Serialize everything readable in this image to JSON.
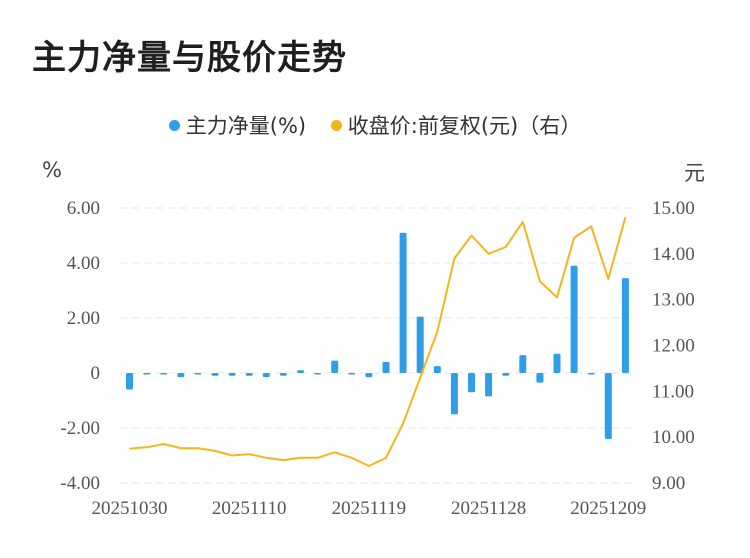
{
  "title": "主力净量与股价走势",
  "legend": [
    {
      "label": "主力净量(%)",
      "color": "#2e9ee8"
    },
    {
      "label": "收盘价:前复权(元)（右）",
      "color": "#f5b51c"
    }
  ],
  "units": {
    "left": "%",
    "right": "元"
  },
  "colors": {
    "bar": "#2e9ee8",
    "line": "#f5b51c",
    "grid": "#e6e6e6",
    "text": "#555555"
  },
  "chart_data": {
    "type": "bar+line",
    "categories": [
      "20251030",
      "20251031",
      "20251103",
      "20251104",
      "20251105",
      "20251106",
      "20251107",
      "20251110",
      "20251111",
      "20251112",
      "20251113",
      "20251114",
      "20251117",
      "20251118",
      "20251119",
      "20251120",
      "20251121",
      "20251124",
      "20251125",
      "20251126",
      "20251127",
      "20251128",
      "20251201",
      "20251202",
      "20251203",
      "20251204",
      "20251205",
      "20251208",
      "20251209",
      "20251210"
    ],
    "x_tick_labels": [
      "20251030",
      "20251110",
      "20251119",
      "20251128",
      "20251209"
    ],
    "x_tick_indices": [
      0,
      7,
      14,
      21,
      28
    ],
    "series": [
      {
        "name": "主力净量(%)",
        "type": "bar",
        "axis": "left",
        "values": [
          -0.6,
          0.0,
          0.0,
          -0.15,
          -0.05,
          -0.1,
          -0.1,
          -0.1,
          -0.15,
          -0.1,
          0.1,
          0.0,
          0.45,
          -0.05,
          -0.15,
          0.4,
          5.1,
          2.05,
          0.25,
          -1.5,
          -0.7,
          -0.85,
          -0.1,
          0.65,
          -0.35,
          0.7,
          3.9,
          0.0,
          -2.4,
          3.45
        ]
      },
      {
        "name": "收盘价:前复权(元)（右）",
        "type": "line",
        "axis": "right",
        "values": [
          9.75,
          9.78,
          9.85,
          9.76,
          9.76,
          9.7,
          9.6,
          9.63,
          9.55,
          9.5,
          9.55,
          9.55,
          9.67,
          9.55,
          9.37,
          9.55,
          10.3,
          11.3,
          12.3,
          13.9,
          14.4,
          14.0,
          14.15,
          14.7,
          13.4,
          13.05,
          14.35,
          14.6,
          13.45,
          14.8
        ]
      }
    ],
    "y_left": {
      "ticks": [
        "6.00",
        "4.00",
        "2.00",
        "0",
        "-2.00",
        "-4.00"
      ],
      "values": [
        6,
        4,
        2,
        0,
        -2,
        -4
      ],
      "range": [
        -4,
        6
      ]
    },
    "y_right": {
      "ticks": [
        "15.00",
        "14.00",
        "13.00",
        "12.00",
        "11.00",
        "10.00",
        "9.00"
      ],
      "values": [
        15,
        14,
        13,
        12,
        11,
        10,
        9
      ],
      "range": [
        9,
        15
      ]
    },
    "grid": true,
    "legend_position": "top-center"
  }
}
